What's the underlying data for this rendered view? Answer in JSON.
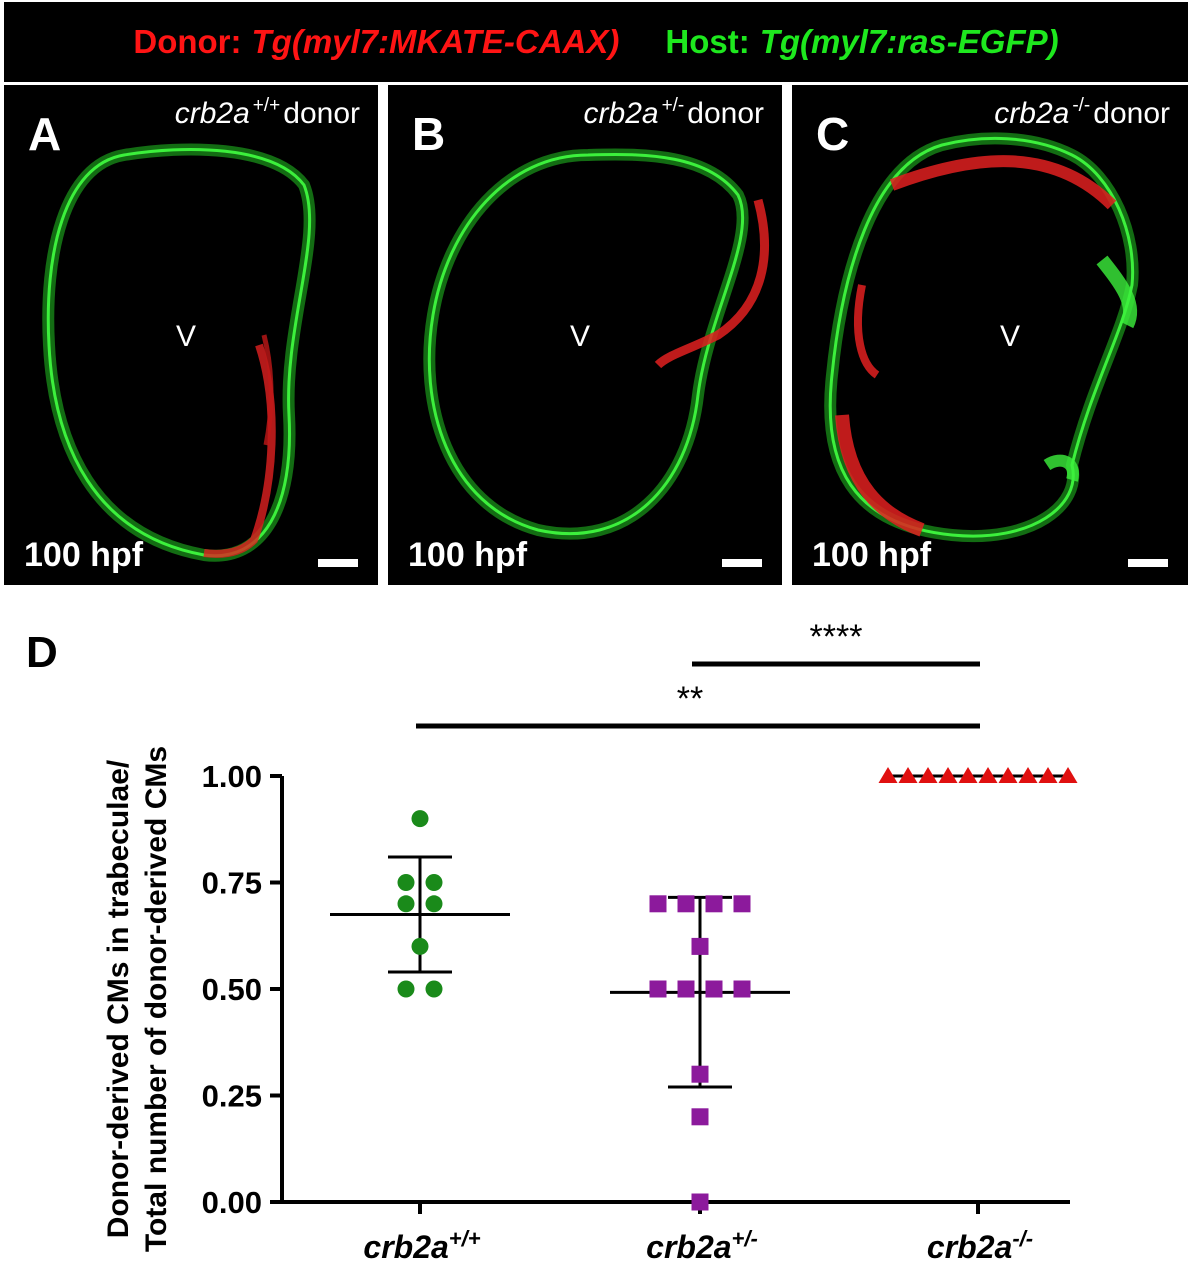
{
  "legend": {
    "donor_label": "Donor:",
    "donor_line": "Tg(myl7:MKATE-CAAX)",
    "host_label": "Host:",
    "host_line": "Tg(myl7:ras-EGFP)"
  },
  "panels": [
    {
      "letter": "A",
      "genotype": "crb2a",
      "sup": "+/+",
      "suffix": "donor",
      "time": "100 hpf",
      "chamber": "V"
    },
    {
      "letter": "B",
      "genotype": "crb2a",
      "sup": "+/-",
      "suffix": "donor",
      "time": "100 hpf",
      "chamber": "V"
    },
    {
      "letter": "C",
      "genotype": "crb2a",
      "sup": "-/-",
      "suffix": "donor",
      "time": "100 hpf",
      "chamber": "V"
    }
  ],
  "panel_d_letter": "D",
  "colors": {
    "donor": "#ff1414",
    "host": "#1ee81e",
    "wt": "#1a8a1a",
    "het": "#8c1a9c",
    "mut": "#e01010"
  },
  "chart_data": {
    "type": "scatter",
    "title": "",
    "ylabel_line1": "Donor-derived CMs in trabeculae/",
    "ylabel_line2": "Total number of donor-derived CMs",
    "ylim": [
      0,
      1
    ],
    "yticks": [
      "0.00",
      "0.25",
      "0.50",
      "0.75",
      "1.00"
    ],
    "categories": [
      {
        "base": "crb2a",
        "sup": "+/+"
      },
      {
        "base": "crb2a",
        "sup": "+/-"
      },
      {
        "base": "crb2a",
        "sup": "-/-"
      }
    ],
    "series": [
      {
        "marker": "circle",
        "color": "#1a8a1a",
        "values": [
          0.9,
          0.75,
          0.75,
          0.7,
          0.7,
          0.6,
          0.5,
          0.5
        ],
        "mean": 0.675,
        "sd_low": 0.54,
        "sd_high": 0.81
      },
      {
        "marker": "square",
        "color": "#8c1a9c",
        "values": [
          0.7,
          0.7,
          0.7,
          0.7,
          0.6,
          0.5,
          0.5,
          0.5,
          0.5,
          0.3,
          0.2,
          0.0
        ],
        "mean": 0.492,
        "sd_low": 0.27,
        "sd_high": 0.715
      },
      {
        "marker": "triangle",
        "color": "#e01010",
        "values": [
          1,
          1,
          1,
          1,
          1,
          1,
          1,
          1,
          1,
          1
        ],
        "mean": 1.0,
        "sd_low": 1.0,
        "sd_high": 1.0
      }
    ],
    "significance": [
      {
        "from": 1,
        "to": 2,
        "label": "****"
      },
      {
        "from": 0,
        "to": 2,
        "label": "**"
      }
    ]
  }
}
